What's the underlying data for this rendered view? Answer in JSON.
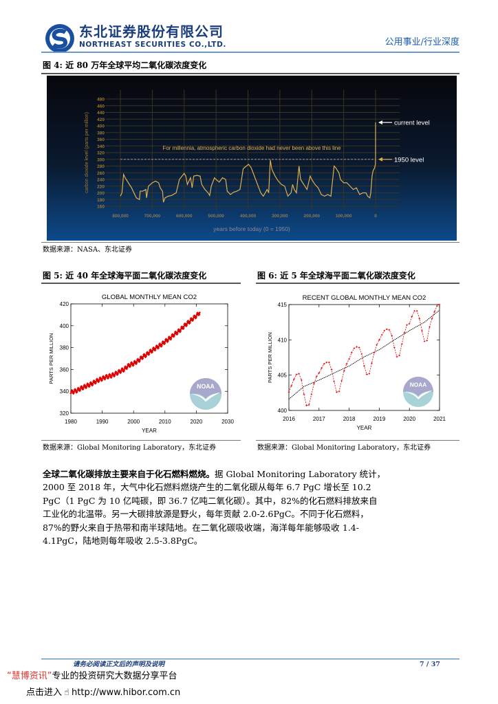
{
  "header": {
    "company_cn": "东北证券股份有限公司",
    "company_en": "NORTHEAST SECURITIES CO.,LTD.",
    "section": "公用事业/行业深度",
    "brand_color": "#1a3d7c"
  },
  "figures": [
    {
      "title": "图 4: 近 80 万年全球平均二氧化碳浓度变化",
      "source": "数据来源：NASA、东北证券"
    },
    {
      "title": "图 5: 近 40 年全球海平面二氧化碳浓度变化",
      "source": "数据来源：Global Monitoring Laboratory，东北证券"
    },
    {
      "title": "图 6: 近 5 年全球海平面二氧化碳浓度变化",
      "source": "数据来源：Global Monitoring Laboratory，东北证券"
    }
  ],
  "chart_data": [
    {
      "type": "line",
      "ylabel": "carbon dioxide level (parts per million)",
      "xlabel": "years before today (0 = 1950)",
      "xlim": [
        800000,
        0
      ],
      "ylim": [
        160,
        480
      ],
      "yticks": [
        160,
        180,
        200,
        220,
        240,
        260,
        280,
        300,
        320,
        340,
        360,
        380,
        400,
        420,
        440,
        460,
        480
      ],
      "xticks": [
        "800,000",
        "700,000",
        "600,000",
        "500,000",
        "400,000",
        "300,000",
        "200,000",
        "100,000",
        "0"
      ],
      "xtick_values": [
        800000,
        700000,
        600000,
        500000,
        400000,
        300000,
        200000,
        100000,
        0
      ],
      "grid": true,
      "line_color": "#e0b050",
      "reference_line": {
        "value": 300,
        "label": "For millennia, atmospheric carbon dioxide had never been above this line"
      },
      "annotations": [
        {
          "label": "current level",
          "value": 410
        },
        {
          "label": "1950 level",
          "value": 300
        }
      ],
      "x": [
        800000,
        795000,
        790000,
        785000,
        775000,
        765000,
        755000,
        750000,
        740000,
        738000,
        730000,
        720000,
        718000,
        712000,
        700000,
        690000,
        680000,
        675000,
        668000,
        665000,
        660000,
        650000,
        640000,
        625000,
        615000,
        600000,
        595000,
        590000,
        580000,
        575000,
        570000,
        560000,
        550000,
        545000,
        535000,
        525000,
        520000,
        515000,
        505000,
        500000,
        490000,
        480000,
        470000,
        465000,
        455000,
        445000,
        435000,
        425000,
        415000,
        405000,
        398000,
        390000,
        380000,
        370000,
        360000,
        352000,
        340000,
        335000,
        330000,
        325000,
        315000,
        305000,
        295000,
        285000,
        275000,
        265000,
        260000,
        255000,
        248000,
        240000,
        235000,
        225000,
        215000,
        205000,
        200000,
        190000,
        180000,
        170000,
        160000,
        150000,
        140000,
        130000,
        125000,
        115000,
        110000,
        100000,
        90000,
        80000,
        70000,
        60000,
        50000,
        40000,
        30000,
        25000,
        18000,
        15000,
        11000,
        8000,
        3000,
        500,
        0,
        0
      ],
      "y": [
        190,
        200,
        255,
        245,
        230,
        215,
        195,
        185,
        180,
        205,
        205,
        210,
        185,
        220,
        230,
        235,
        230,
        215,
        205,
        172,
        185,
        190,
        192,
        200,
        240,
        258,
        250,
        225,
        245,
        215,
        250,
        252,
        250,
        225,
        210,
        200,
        192,
        220,
        245,
        240,
        232,
        245,
        240,
        205,
        195,
        202,
        205,
        210,
        272,
        280,
        285,
        275,
        250,
        225,
        200,
        190,
        210,
        200,
        298,
        270,
        250,
        235,
        225,
        220,
        190,
        200,
        225,
        210,
        200,
        280,
        240,
        225,
        210,
        250,
        240,
        225,
        215,
        195,
        190,
        195,
        190,
        280,
        275,
        260,
        240,
        230,
        230,
        220,
        210,
        215,
        195,
        200,
        200,
        190,
        185,
        200,
        250,
        265,
        275,
        285,
        310,
        410
      ]
    },
    {
      "type": "line",
      "title": "GLOBAL MONTHLY MEAN CO2",
      "xlabel": "YEAR",
      "ylabel": "PARTS PER MILLION",
      "xlim": [
        1980,
        2030
      ],
      "ylim": [
        320,
        420
      ],
      "xticks": [
        1980,
        1990,
        2000,
        2010,
        2020,
        2030
      ],
      "yticks": [
        320,
        340,
        360,
        380,
        400,
        420
      ],
      "grid": false,
      "series": [
        {
          "color": "#e00000",
          "marker": "+",
          "x": [
            1980,
            1981,
            1982,
            1983,
            1984,
            1985,
            1986,
            1987,
            1988,
            1989,
            1990,
            1991,
            1992,
            1993,
            1994,
            1995,
            1996,
            1997,
            1998,
            1999,
            2000,
            2001,
            2002,
            2003,
            2004,
            2005,
            2006,
            2007,
            2008,
            2009,
            2010,
            2011,
            2012,
            2013,
            2014,
            2015,
            2016,
            2017,
            2018,
            2019,
            2020,
            2021
          ],
          "y": [
            338.9,
            339.9,
            340.8,
            342.4,
            343.7,
            345.0,
            346.1,
            347.4,
            349.2,
            350.5,
            351.6,
            352.9,
            353.7,
            354.4,
            355.7,
            357.1,
            358.9,
            360.0,
            362.7,
            364.4,
            365.4,
            367.1,
            369.2,
            371.8,
            373.3,
            375.6,
            377.5,
            379.5,
            381.3,
            383.0,
            385.5,
            387.4,
            389.5,
            392.2,
            394.1,
            396.5,
            399.4,
            401.9,
            404.2,
            406.8,
            409.0,
            412.0
          ]
        }
      ]
    },
    {
      "type": "line",
      "title": "RECENT GLOBAL MONTHLY MEAN CO2",
      "xlabel": "YEAR",
      "ylabel": "PARTS PER MILLION",
      "xlim": [
        2016,
        2021
      ],
      "ylim": [
        400,
        415
      ],
      "xticks": [
        2016,
        2017,
        2018,
        2019,
        2020,
        2021
      ],
      "yticks": [
        400,
        405,
        410,
        415
      ],
      "grid": false,
      "series": [
        {
          "color": "#e00000",
          "style": "dashed",
          "start": 2016,
          "step_months": 1,
          "y": [
            402.6,
            403.5,
            404.4,
            405.1,
            405.2,
            404.3,
            402.3,
            400.7,
            400.8,
            402.3,
            403.8,
            404.8,
            405.3,
            406.0,
            406.6,
            406.8,
            406.8,
            405.8,
            404.1,
            402.6,
            402.7,
            404.2,
            405.6,
            406.6,
            407.3,
            408.2,
            408.8,
            409.0,
            408.9,
            408.0,
            406.3,
            405.1,
            405.2,
            406.7,
            408.2,
            409.3,
            410.0,
            410.7,
            411.3,
            411.5,
            411.4,
            410.6,
            408.9,
            407.6,
            407.8,
            409.4,
            411.0,
            412.1,
            412.3,
            413.3,
            414.1,
            414.1,
            413.0,
            411.3,
            409.8,
            409.9,
            411.8,
            413.0,
            414.0,
            414.8,
            415.0
          ]
        },
        {
          "color": "#000000",
          "style": "dotted",
          "x": [
            2016,
            2016.5,
            2017,
            2017.5,
            2018,
            2018.5,
            2019,
            2019.5,
            2020,
            2020.5,
            2021
          ],
          "y": [
            401.6,
            403.4,
            404.3,
            405.3,
            406.3,
            407.6,
            408.6,
            410.0,
            411.3,
            412.5,
            414.2
          ]
        }
      ]
    }
  ],
  "body": {
    "lines": [
      {
        "bold": "全球二氧化碳排放主要来自于化石燃料燃烧。",
        "text": "据 Global Monitoring Laboratory 统计，"
      },
      {
        "bold": "",
        "text": "2000 至 2018 年，大气中化石燃料燃烧产生的二氧化碳从每年 6.7 PgC 增长至 10.2"
      },
      {
        "bold": "",
        "text": "PgC（1 PgC 为 10 亿吨碳，即 36.7 亿吨二氧化碳）。其中，82%的化石燃料排放来自"
      },
      {
        "bold": "",
        "text": "工业化的北温带。另一大碳排放源是野火，每年贡献 2.0-2.6PgC。不同于化石燃料，"
      },
      {
        "bold": "",
        "text": "87%的野火来自于热带和南半球陆地。在二氧化碳吸收端，海洋每年能够吸收 1.4-"
      },
      {
        "bold": "",
        "text": "4.1PgC，陆地则每年吸收 2.5-3.8PgC。"
      }
    ]
  },
  "footer": {
    "disclaimer": "请务必阅读正文后的声明及说明",
    "page": "7 / 37",
    "hibor_brand": "“慧博资讯”",
    "hibor_slogan": "专业的投资研究大数据分享平台",
    "hibor_enter": "点击进入",
    "hibor_url": "http://www.hibor.com.cn"
  }
}
